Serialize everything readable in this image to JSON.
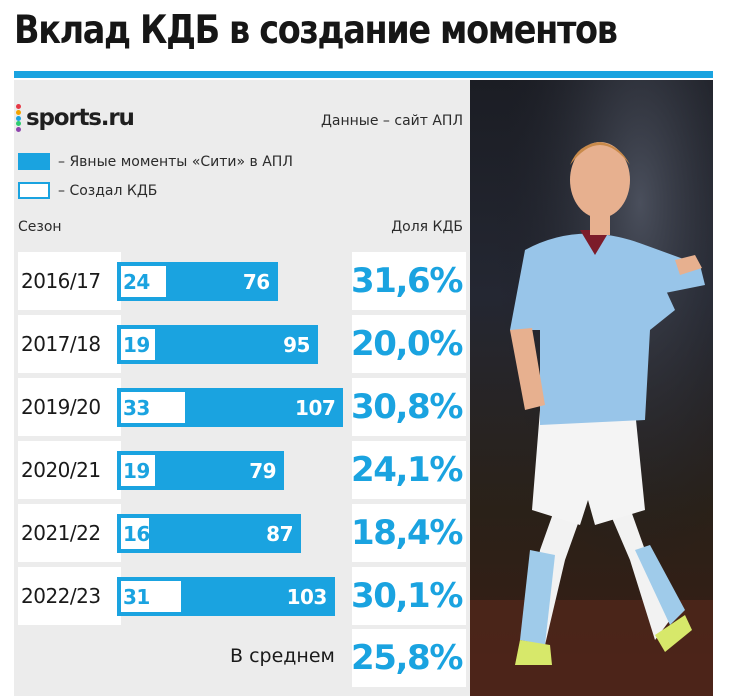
{
  "title": "Вклад КДБ в создание моментов",
  "logo": {
    "text": "sports.ru",
    "dot_colors": [
      "#e63946",
      "#f4a300",
      "#1aa3e0",
      "#2ecc71",
      "#8e44ad"
    ]
  },
  "source": "Данные – сайт АПЛ",
  "legend": [
    {
      "label": "– Явные моменты «Сити» в АПЛ",
      "style": "filled"
    },
    {
      "label": "– Создал КДБ",
      "style": "hollow"
    }
  ],
  "columns": {
    "season": "Сезон",
    "share": "Доля КДБ"
  },
  "colors": {
    "accent": "#1aa3e0",
    "panel": "#ececec"
  },
  "chart_data": {
    "type": "bar",
    "orientation": "horizontal",
    "title": "Вклад КДБ в создание моментов",
    "categories": [
      "2016/17",
      "2017/18",
      "2019/20",
      "2020/21",
      "2021/22",
      "2022/23"
    ],
    "series": [
      {
        "name": "Явные моменты «Сити» в АПЛ",
        "values": [
          76,
          95,
          107,
          79,
          87,
          103
        ]
      },
      {
        "name": "Создал КДБ",
        "values": [
          24,
          19,
          33,
          19,
          16,
          31
        ]
      }
    ],
    "share_labels": [
      "31,6%",
      "20,0%",
      "30,8%",
      "24,1%",
      "18,4%",
      "30,1%"
    ],
    "average": {
      "label": "В среднем",
      "value": "25,8%"
    },
    "xlim": [
      0,
      107
    ],
    "legend_position": "top-left"
  },
  "photo": {
    "icon": "player-photo"
  }
}
